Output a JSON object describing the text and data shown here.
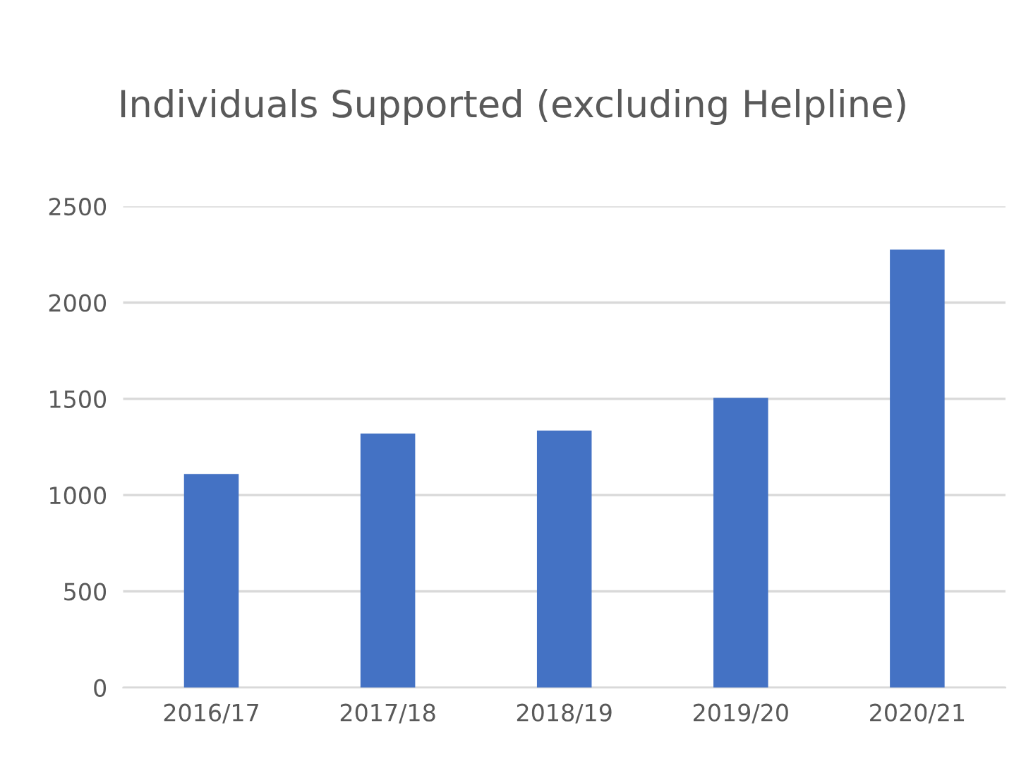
{
  "chart_data": {
    "type": "bar",
    "title": "Individuals Supported (excluding Helpline)",
    "categories": [
      "2016/17",
      "2017/18",
      "2018/19",
      "2019/20",
      "2020/21"
    ],
    "values": [
      1110,
      1320,
      1335,
      1505,
      2275
    ],
    "color": "#4472c4",
    "ylim": [
      0,
      2500
    ],
    "yticks": [
      0,
      500,
      1000,
      1500,
      2000,
      2500
    ],
    "grid": "y",
    "legend": false
  }
}
